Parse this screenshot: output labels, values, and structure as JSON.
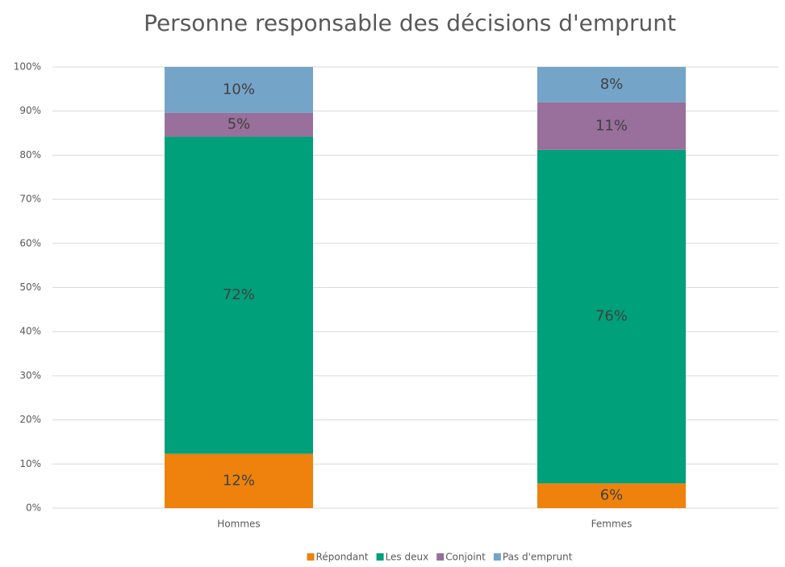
{
  "chart_data": {
    "type": "stacked_bar",
    "title": "Personne responsable des décisions d'emprunt",
    "categories": [
      "Hommes",
      "Femmes"
    ],
    "series": [
      {
        "name": "Répondant",
        "color": "#ee820c",
        "values": [
          12.3,
          5.6
        ],
        "value_labels": [
          "12%",
          "6%"
        ]
      },
      {
        "name": "Les deux",
        "color": "#00a07a",
        "values": [
          71.9,
          75.6
        ],
        "value_labels": [
          "72%",
          "76%"
        ]
      },
      {
        "name": "Conjoint",
        "color": "#98709b",
        "values": [
          5.4,
          10.8
        ],
        "value_labels": [
          "5%",
          "11%"
        ]
      },
      {
        "name": "Pas d'emprunt",
        "color": "#74a4c8",
        "values": [
          10.4,
          8.0
        ],
        "value_labels": [
          "10%",
          "8%"
        ]
      }
    ],
    "ylim": [
      0,
      100
    ],
    "yticks": [
      {
        "value": 0,
        "label": "0%"
      },
      {
        "value": 10,
        "label": "10%"
      },
      {
        "value": 20,
        "label": "20%"
      },
      {
        "value": 30,
        "label": "30%"
      },
      {
        "value": 40,
        "label": "40%"
      },
      {
        "value": 50,
        "label": "50%"
      },
      {
        "value": 60,
        "label": "60%"
      },
      {
        "value": 70,
        "label": "70%"
      },
      {
        "value": 80,
        "label": "80%"
      },
      {
        "value": 90,
        "label": "90%"
      },
      {
        "value": 100,
        "label": "100%"
      }
    ],
    "grid": true,
    "legend": "bottom"
  }
}
